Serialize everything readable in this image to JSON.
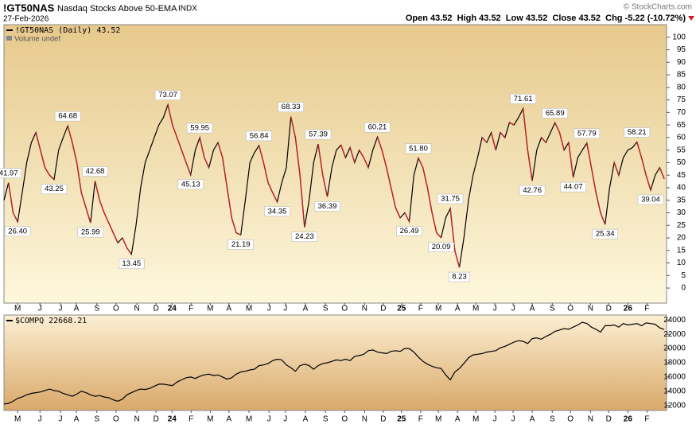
{
  "header": {
    "symbol": "!GT50NAS",
    "name": "Nasdaq Stocks Above 50-EMA",
    "exchange": "INDX",
    "date": "27-Feb-2026",
    "copyright": "© StockCharts.com",
    "quote": "Open 43.52  High 43.52  Low 43.52  Close 43.52  Chg -5.22 (-10.72%)"
  },
  "chart_data": [
    {
      "type": "line",
      "legend": "!GT50NAS (Daily) 43.52",
      "note": "Volume undef",
      "color": "#000000",
      "down_color": "#c0202a",
      "background": [
        "#e7c98c",
        "#fdf7dc"
      ],
      "xlim": [
        0,
        145.5
      ],
      "ylim": [
        -6,
        105
      ],
      "yticks": [
        0,
        5,
        10,
        15,
        20,
        25,
        30,
        35,
        40,
        45,
        50,
        55,
        60,
        65,
        70,
        75,
        80,
        85,
        90,
        95,
        100
      ],
      "xticks": [
        {
          "value": 3,
          "label": "M"
        },
        {
          "value": 7.9,
          "label": "J"
        },
        {
          "value": 12.4,
          "label": "J"
        },
        {
          "value": 15.9,
          "label": "A"
        },
        {
          "value": 20.4,
          "label": "S"
        },
        {
          "value": 24.6,
          "label": "O"
        },
        {
          "value": 29.2,
          "label": "N"
        },
        {
          "value": 33.4,
          "label": "D"
        },
        {
          "value": 36.9,
          "label": "24"
        },
        {
          "value": 41.1,
          "label": "F"
        },
        {
          "value": 45.3,
          "label": "M"
        },
        {
          "value": 49.4,
          "label": "A"
        },
        {
          "value": 53.8,
          "label": "M"
        },
        {
          "value": 58.2,
          "label": "J"
        },
        {
          "value": 61.8,
          "label": "J"
        },
        {
          "value": 66.2,
          "label": "A"
        },
        {
          "value": 70.6,
          "label": "S"
        },
        {
          "value": 74.8,
          "label": "O"
        },
        {
          "value": 79.2,
          "label": "N"
        },
        {
          "value": 83.3,
          "label": "D"
        },
        {
          "value": 87.3,
          "label": "25"
        },
        {
          "value": 91.5,
          "label": "F"
        },
        {
          "value": 95.4,
          "label": "M"
        },
        {
          "value": 99.6,
          "label": "A"
        },
        {
          "value": 103.6,
          "label": "M"
        },
        {
          "value": 107.8,
          "label": "J"
        },
        {
          "value": 111.8,
          "label": "J"
        },
        {
          "value": 116,
          "label": "A"
        },
        {
          "value": 120.4,
          "label": "S"
        },
        {
          "value": 124.4,
          "label": "O"
        },
        {
          "value": 128.8,
          "label": "N"
        },
        {
          "value": 132.8,
          "label": "D"
        },
        {
          "value": 137,
          "label": "26"
        },
        {
          "value": 141.2,
          "label": "F"
        }
      ],
      "values": [
        35,
        41.97,
        30,
        26.4,
        38,
        50,
        58,
        62,
        55,
        48,
        45,
        43.25,
        55,
        60,
        64.68,
        58,
        50,
        38,
        32,
        25.99,
        42.68,
        35,
        30,
        26,
        22,
        18,
        20,
        16,
        13.45,
        25,
        40,
        50,
        55,
        60,
        65,
        68,
        73.07,
        65,
        60,
        55,
        50,
        45.13,
        55,
        59.95,
        52,
        48,
        55,
        58,
        52,
        40,
        28,
        22,
        21.19,
        35,
        50,
        54,
        56.84,
        50,
        42,
        38,
        34.35,
        42,
        48,
        68.33,
        60,
        45,
        24.23,
        35,
        50,
        57.39,
        45,
        36.39,
        48,
        55,
        57,
        52,
        56,
        50,
        55,
        52,
        48,
        55,
        60.21,
        55,
        48,
        40,
        32,
        28,
        30,
        26.49,
        45,
        51.8,
        48,
        40,
        30,
        22,
        20.09,
        28,
        31.75,
        15,
        8.23,
        20,
        35,
        45,
        52,
        60,
        58,
        62,
        55,
        62,
        60,
        66,
        65,
        68,
        71.61,
        55,
        42.76,
        55,
        60,
        58,
        62,
        65.89,
        62,
        55,
        58,
        44.07,
        52,
        55,
        57.79,
        48,
        38,
        30,
        25.34,
        40,
        50,
        45,
        52,
        55,
        56,
        58.21,
        52,
        45,
        39.04,
        45,
        48,
        43.52
      ],
      "value_labels": [
        null,
        "41.97",
        null,
        "26.40",
        null,
        null,
        null,
        null,
        null,
        null,
        null,
        "43.25",
        null,
        null,
        "64.68",
        null,
        null,
        null,
        null,
        "25.99",
        "42.68",
        null,
        null,
        null,
        null,
        null,
        null,
        null,
        "13.45",
        null,
        null,
        null,
        null,
        null,
        null,
        null,
        "73.07",
        null,
        null,
        null,
        null,
        "45.13",
        null,
        "59.95",
        null,
        null,
        null,
        null,
        null,
        null,
        null,
        null,
        "21.19",
        null,
        null,
        null,
        "56.84",
        null,
        null,
        null,
        "34.35",
        null,
        null,
        "68.33",
        null,
        null,
        "24.23",
        null,
        null,
        "57.39",
        null,
        "36.39",
        null,
        null,
        null,
        null,
        null,
        null,
        null,
        null,
        null,
        null,
        "60.21",
        null,
        null,
        null,
        null,
        null,
        null,
        "26.49",
        null,
        "51.80",
        null,
        null,
        null,
        null,
        "20.09",
        null,
        "31.75",
        null,
        "8.23",
        null,
        null,
        null,
        null,
        null,
        null,
        null,
        null,
        null,
        null,
        null,
        null,
        null,
        "71.61",
        null,
        "42.76",
        null,
        null,
        null,
        null,
        "65.89",
        null,
        null,
        null,
        "44.07",
        null,
        null,
        "57.79",
        null,
        null,
        null,
        "25.34",
        null,
        null,
        null,
        null,
        null,
        null,
        "58.21",
        null,
        null,
        "39.04",
        null,
        null,
        null
      ]
    },
    {
      "type": "line",
      "legend": "$COMPQ 22668.21",
      "color": "#000000",
      "background": [
        "#fcefd3",
        "#d9a96a"
      ],
      "xlim": [
        0,
        145.5
      ],
      "ylim": [
        11300,
        24700
      ],
      "yticks": [
        12000,
        14000,
        16000,
        18000,
        20000,
        22000,
        24000
      ],
      "xticks": [
        {
          "value": 3,
          "label": "M"
        },
        {
          "value": 7.9,
          "label": "J"
        },
        {
          "value": 12.4,
          "label": "J"
        },
        {
          "value": 15.9,
          "label": "A"
        },
        {
          "value": 20.4,
          "label": "S"
        },
        {
          "value": 24.6,
          "label": "O"
        },
        {
          "value": 29.2,
          "label": "N"
        },
        {
          "value": 33.4,
          "label": "D"
        },
        {
          "value": 36.9,
          "label": "24"
        },
        {
          "value": 41.1,
          "label": "F"
        },
        {
          "value": 45.3,
          "label": "M"
        },
        {
          "value": 49.4,
          "label": "A"
        },
        {
          "value": 53.8,
          "label": "M"
        },
        {
          "value": 58.2,
          "label": "J"
        },
        {
          "value": 61.8,
          "label": "J"
        },
        {
          "value": 66.2,
          "label": "A"
        },
        {
          "value": 70.6,
          "label": "S"
        },
        {
          "value": 74.8,
          "label": "O"
        },
        {
          "value": 79.2,
          "label": "N"
        },
        {
          "value": 83.3,
          "label": "D"
        },
        {
          "value": 87.3,
          "label": "25"
        },
        {
          "value": 91.5,
          "label": "F"
        },
        {
          "value": 95.4,
          "label": "M"
        },
        {
          "value": 99.6,
          "label": "A"
        },
        {
          "value": 103.6,
          "label": "M"
        },
        {
          "value": 107.8,
          "label": "J"
        },
        {
          "value": 111.8,
          "label": "J"
        },
        {
          "value": 116,
          "label": "A"
        },
        {
          "value": 120.4,
          "label": "S"
        },
        {
          "value": 124.4,
          "label": "O"
        },
        {
          "value": 128.8,
          "label": "N"
        },
        {
          "value": 132.8,
          "label": "D"
        },
        {
          "value": 137,
          "label": "26"
        },
        {
          "value": 141.2,
          "label": "F"
        }
      ],
      "values": [
        12200,
        12300,
        12600,
        13000,
        13200,
        13500,
        13700,
        13800,
        13900,
        14100,
        14300,
        14100,
        14000,
        13700,
        13500,
        13300,
        13600,
        14000,
        13800,
        13500,
        13300,
        13400,
        13200,
        13100,
        12800,
        12600,
        12900,
        13500,
        13800,
        14100,
        14300,
        14250,
        14400,
        14700,
        15000,
        15000,
        14900,
        14800,
        15300,
        15600,
        15900,
        16000,
        15800,
        16100,
        16300,
        16400,
        16200,
        16300,
        16000,
        15700,
        15900,
        16400,
        16700,
        16800,
        17000,
        17100,
        17600,
        17700,
        17900,
        18300,
        18500,
        18400,
        17700,
        17300,
        16800,
        17600,
        17800,
        17600,
        17100,
        17600,
        17900,
        18000,
        18200,
        18400,
        18300,
        18500,
        18300,
        18900,
        19000,
        19200,
        19700,
        19800,
        19500,
        19400,
        19300,
        19600,
        19700,
        19600,
        20000,
        20000,
        19500,
        18800,
        18200,
        17800,
        17500,
        17300,
        17200,
        16300,
        15600,
        16700,
        17200,
        17900,
        18700,
        19100,
        19200,
        19300,
        19500,
        19600,
        19700,
        20100,
        20300,
        20600,
        20900,
        21100,
        21000,
        20700,
        21400,
        21500,
        21300,
        21700,
        22000,
        22400,
        22600,
        22800,
        22700,
        23000,
        23300,
        23700,
        23500,
        23000,
        22700,
        22300,
        23200,
        23200,
        23300,
        23000,
        23500,
        23300,
        23400,
        23500,
        23200,
        23600,
        23500,
        23400,
        22900,
        22668.21
      ]
    }
  ]
}
